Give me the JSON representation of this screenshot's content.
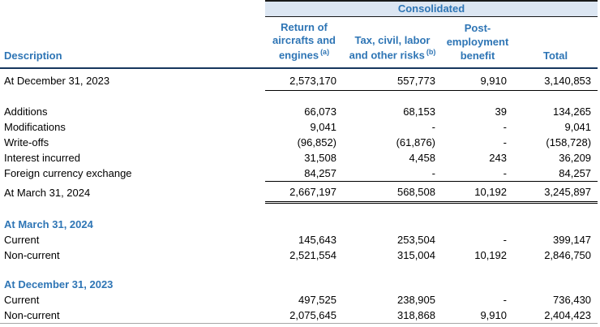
{
  "colors": {
    "header_text_blue": "#2e75b5",
    "header_band_bg": "#dce6f2",
    "rule_dark": "#17375e",
    "rule_black": "#000000",
    "bottom_rule_gray": "#a6a6a6"
  },
  "table": {
    "group_header": "Consolidated",
    "columns": {
      "description": "Description",
      "return_of_aircrafts": "Return of aircrafts and engines",
      "return_of_aircrafts_note": "(a)",
      "tax_civil_labor": "Tax, civil, labor and other risks",
      "tax_civil_labor_note": "(b)",
      "post_employment": "Post-employment benefit",
      "total": "Total"
    },
    "rows": [
      {
        "label": "At December 31, 2023",
        "values": [
          "2,573,170",
          "557,773",
          "9,910",
          "3,140,853"
        ],
        "style": "opening"
      },
      {
        "style": "spacer"
      },
      {
        "label": "Additions",
        "values": [
          "66,073",
          "68,153",
          "39",
          "134,265"
        ],
        "style": "normal"
      },
      {
        "label": "Modifications",
        "values": [
          "9,041",
          "-",
          "-",
          "9,041"
        ],
        "style": "normal"
      },
      {
        "label": "Write-offs",
        "values": [
          "(96,852)",
          "(61,876)",
          "-",
          "(158,728)"
        ],
        "style": "normal"
      },
      {
        "label": "Interest incurred",
        "values": [
          "31,508",
          "4,458",
          "243",
          "36,209"
        ],
        "style": "normal"
      },
      {
        "label": "Foreign currency exchange",
        "values": [
          "84,257",
          "-",
          "-",
          "84,257"
        ],
        "style": "underline"
      },
      {
        "label": "At March 31, 2024",
        "values": [
          "2,667,197",
          "568,508",
          "10,192",
          "3,245,897"
        ],
        "style": "closing"
      },
      {
        "style": "spacer"
      },
      {
        "label": "At March 31, 2024",
        "style": "section"
      },
      {
        "label": "Current",
        "values": [
          "145,643",
          "253,504",
          "-",
          "399,147"
        ],
        "style": "normal"
      },
      {
        "label": "Non-current",
        "values": [
          "2,521,554",
          "315,004",
          "10,192",
          "2,846,750"
        ],
        "style": "normal"
      },
      {
        "style": "spacer"
      },
      {
        "label": "At December 31, 2023",
        "style": "section"
      },
      {
        "label": "Current",
        "values": [
          "497,525",
          "238,905",
          "-",
          "736,430"
        ],
        "style": "normal"
      },
      {
        "label": "Non-current",
        "values": [
          "2,075,645",
          "318,868",
          "9,910",
          "2,404,423"
        ],
        "style": "normal"
      }
    ]
  }
}
